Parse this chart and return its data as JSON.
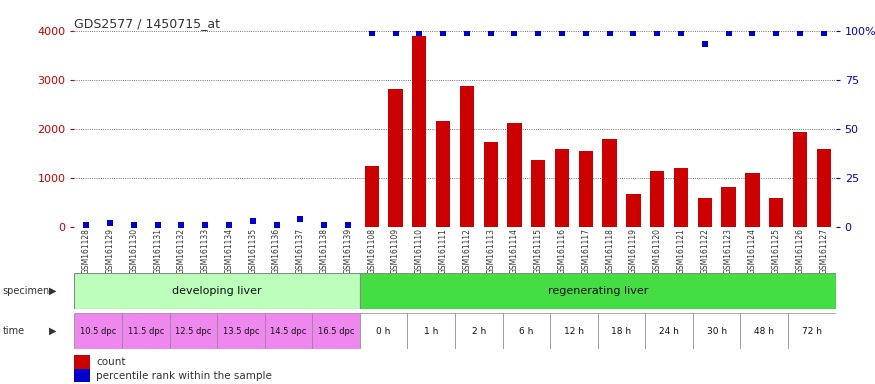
{
  "title": "GDS2577 / 1450715_at",
  "samples": [
    "GSM161128",
    "GSM161129",
    "GSM161130",
    "GSM161131",
    "GSM161132",
    "GSM161133",
    "GSM161134",
    "GSM161135",
    "GSM161136",
    "GSM161137",
    "GSM161138",
    "GSM161139",
    "GSM161108",
    "GSM161109",
    "GSM161110",
    "GSM161111",
    "GSM161112",
    "GSM161113",
    "GSM161114",
    "GSM161115",
    "GSM161116",
    "GSM161117",
    "GSM161118",
    "GSM161119",
    "GSM161120",
    "GSM161121",
    "GSM161122",
    "GSM161123",
    "GSM161124",
    "GSM161125",
    "GSM161126",
    "GSM161127"
  ],
  "counts": [
    0,
    0,
    0,
    0,
    0,
    0,
    0,
    0,
    0,
    0,
    0,
    0,
    1230,
    2800,
    3900,
    2150,
    2880,
    1720,
    2120,
    1360,
    1580,
    1540,
    1780,
    660,
    1140,
    1200,
    580,
    810,
    1090,
    580,
    1940,
    1590
  ],
  "percentile_pct": [
    1,
    2,
    1,
    1,
    1,
    1,
    1,
    3,
    1,
    4,
    1,
    1,
    99,
    99,
    99,
    99,
    99,
    99,
    99,
    99,
    99,
    99,
    99,
    99,
    99,
    99,
    93,
    99,
    99,
    99,
    99,
    99
  ],
  "count_color": "#cc0000",
  "percentile_color": "#0000cc",
  "ylim_left": [
    0,
    4000
  ],
  "ylim_right": [
    0,
    100
  ],
  "yticks_left": [
    0,
    1000,
    2000,
    3000,
    4000
  ],
  "yticks_right": [
    0,
    25,
    50,
    75,
    100
  ],
  "time_labels_dev": [
    "10.5 dpc",
    "11.5 dpc",
    "12.5 dpc",
    "13.5 dpc",
    "14.5 dpc",
    "16.5 dpc"
  ],
  "time_labels_reg": [
    "0 h",
    "1 h",
    "2 h",
    "6 h",
    "12 h",
    "18 h",
    "24 h",
    "30 h",
    "48 h",
    "72 h"
  ],
  "dev_color": "#bbffbb",
  "reg_color": "#44dd44",
  "time_dev_color": "#ee88ee",
  "time_reg_color": "#ffffff",
  "bg_color": "#ffffff",
  "grid_color": "#444444"
}
